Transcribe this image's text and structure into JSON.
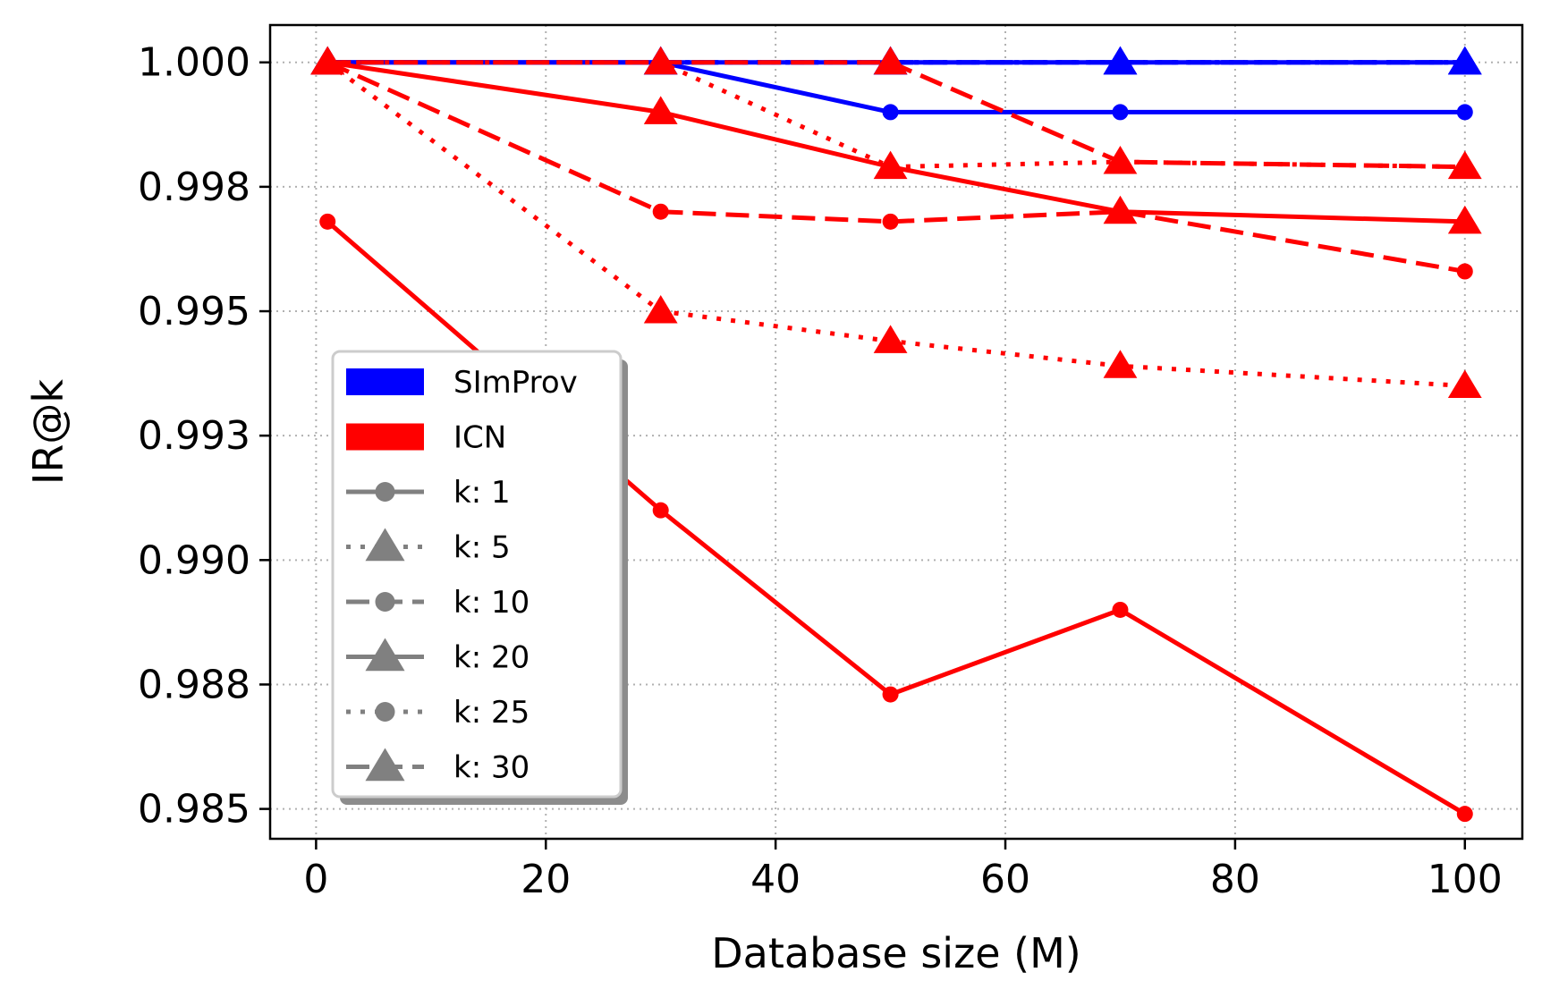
{
  "chart_data": {
    "type": "line",
    "title": "",
    "xlabel": "Database size (M)",
    "ylabel": "IR@k",
    "xlim": [
      -4,
      105
    ],
    "ylim": [
      0.9844,
      1.00075
    ],
    "x_ticks": [
      0,
      20,
      40,
      60,
      80,
      100
    ],
    "x_tick_labels": [
      "0",
      "20",
      "40",
      "60",
      "80",
      "100"
    ],
    "y_ticks": [
      0.985,
      0.9875,
      0.99,
      0.9925,
      0.995,
      0.9975,
      1.0
    ],
    "y_tick_labels": [
      "0.985",
      "0.988",
      "0.990",
      "0.993",
      "0.995",
      "0.998",
      "1.000"
    ],
    "grid": true,
    "legend_position": "lower-left",
    "x": [
      1,
      30,
      50,
      70,
      100
    ],
    "methods": [
      {
        "name": "SImProv",
        "color": "#0000ff"
      },
      {
        "name": "ICN",
        "color": "#ff0000"
      }
    ],
    "k_values": [
      {
        "name": "k: 1",
        "linestyle": "solid",
        "marker": "circle"
      },
      {
        "name": "k: 5",
        "linestyle": "dotted",
        "marker": "triangle"
      },
      {
        "name": "k: 10",
        "linestyle": "dashed",
        "marker": "circle"
      },
      {
        "name": "k: 20",
        "linestyle": "solid",
        "marker": "triangle"
      },
      {
        "name": "k: 25",
        "linestyle": "dotted",
        "marker": "circle"
      },
      {
        "name": "k: 30",
        "linestyle": "dashed",
        "marker": "triangle"
      }
    ],
    "legend_marker_color": "#808080",
    "series": [
      {
        "method": "SImProv",
        "k": "k: 30",
        "values": [
          1.0,
          1.0,
          1.0,
          1.0,
          1.0
        ]
      },
      {
        "method": "SImProv",
        "k": "k: 25",
        "values": [
          1.0,
          1.0,
          1.0,
          1.0,
          1.0
        ]
      },
      {
        "method": "SImProv",
        "k": "k: 20",
        "values": [
          1.0,
          1.0,
          1.0,
          1.0,
          1.0
        ]
      },
      {
        "method": "SImProv",
        "k": "k: 10",
        "values": [
          1.0,
          1.0,
          1.0,
          1.0,
          1.0
        ]
      },
      {
        "method": "SImProv",
        "k": "k: 5",
        "values": [
          1.0,
          1.0,
          1.0,
          1.0,
          1.0
        ]
      },
      {
        "method": "SImProv",
        "k": "k: 1",
        "values": [
          1.0,
          1.0,
          0.999,
          0.999,
          0.999
        ]
      },
      {
        "method": "ICN",
        "k": "k: 1",
        "values": [
          0.9968,
          0.991,
          0.9873,
          0.989,
          0.9849
        ]
      },
      {
        "method": "ICN",
        "k": "k: 5",
        "values": [
          1.0,
          0.995,
          0.9944,
          0.9939,
          0.9935
        ]
      },
      {
        "method": "ICN",
        "k": "k: 10",
        "values": [
          1.0,
          0.997,
          0.9968,
          0.997,
          0.9958
        ]
      },
      {
        "method": "ICN",
        "k": "k: 20",
        "values": [
          1.0,
          0.999,
          0.9979,
          0.997,
          0.9968
        ]
      },
      {
        "method": "ICN",
        "k": "k: 25",
        "values": [
          1.0,
          1.0,
          0.9979,
          0.998,
          0.9979
        ]
      },
      {
        "method": "ICN",
        "k": "k: 30",
        "values": [
          1.0,
          1.0,
          1.0,
          0.998,
          0.9979
        ]
      }
    ]
  }
}
